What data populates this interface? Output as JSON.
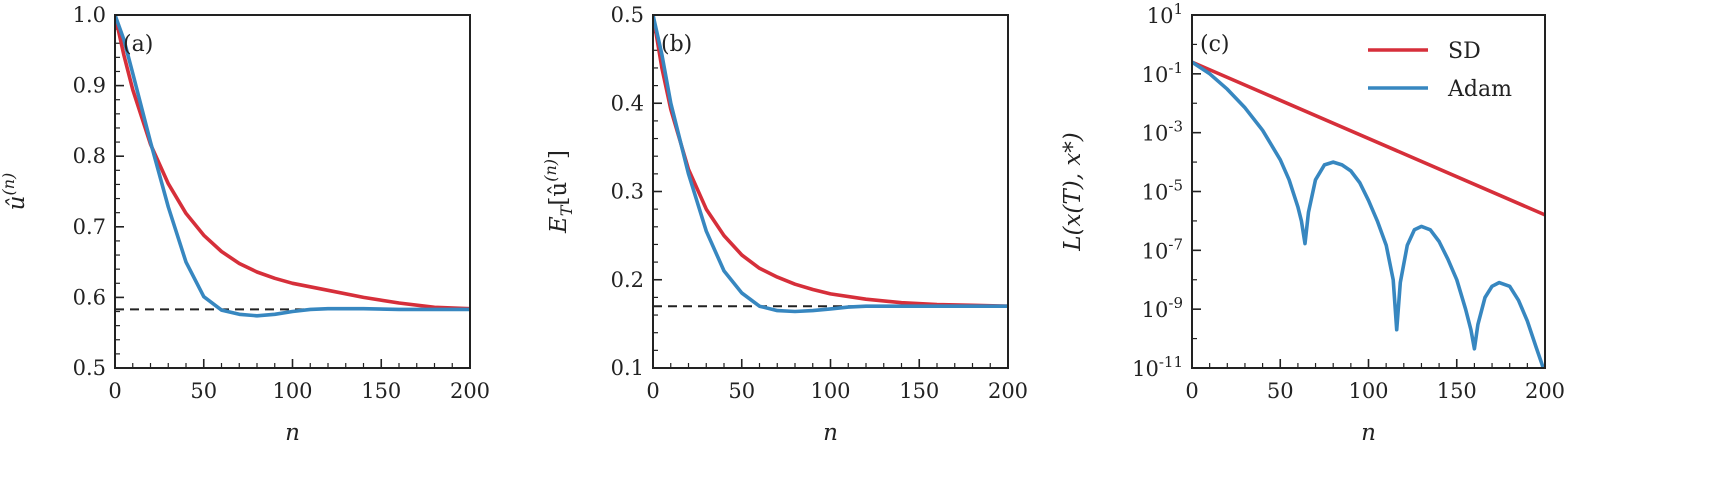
{
  "colors": {
    "sd": "#d62f3a",
    "adam": "#3787c0",
    "reference": "#222222"
  },
  "legend": {
    "placement": "top-right of panel (c)",
    "entries": [
      "SD",
      "Adam"
    ]
  },
  "chart_data": [
    {
      "type": "line",
      "panel_label": "(a)",
      "xlabel": "n",
      "ylabel_parts": [
        "û",
        "(n)"
      ],
      "xlim": [
        0,
        200
      ],
      "ylim": [
        0.5,
        1.0
      ],
      "xticks": [
        0,
        50,
        100,
        150,
        200
      ],
      "xtick_labels": [
        "0",
        "50",
        "100",
        "150",
        "200"
      ],
      "yticks": [
        0.5,
        0.6,
        0.7,
        0.8,
        0.9,
        1.0
      ],
      "ytick_labels": [
        "0.5",
        "0.6",
        "0.7",
        "0.8",
        "0.9",
        "1.0"
      ],
      "yscale": "linear",
      "reference_line": {
        "style": "dashed",
        "y": 0.583
      },
      "series": [
        {
          "name": "SD",
          "color": "#d62f3a",
          "x": [
            0,
            5,
            10,
            20,
            30,
            40,
            50,
            60,
            70,
            80,
            90,
            100,
            120,
            140,
            160,
            180,
            200
          ],
          "y": [
            1.0,
            0.943,
            0.894,
            0.817,
            0.761,
            0.719,
            0.688,
            0.665,
            0.648,
            0.636,
            0.627,
            0.62,
            0.61,
            0.6,
            0.592,
            0.586,
            0.584
          ]
        },
        {
          "name": "Adam",
          "color": "#3787c0",
          "x": [
            0,
            5,
            10,
            20,
            30,
            40,
            50,
            60,
            70,
            80,
            90,
            100,
            110,
            120,
            140,
            160,
            180,
            200
          ],
          "y": [
            1.0,
            0.965,
            0.917,
            0.82,
            0.728,
            0.65,
            0.601,
            0.582,
            0.576,
            0.574,
            0.576,
            0.58,
            0.583,
            0.584,
            0.584,
            0.583,
            0.583,
            0.583
          ]
        }
      ]
    },
    {
      "type": "line",
      "panel_label": "(b)",
      "xlabel": "n",
      "ylabel_parts": [
        "E",
        "T",
        "[û",
        "(n)",
        "]"
      ],
      "xlim": [
        0,
        200
      ],
      "ylim": [
        0.1,
        0.5
      ],
      "xticks": [
        0,
        50,
        100,
        150,
        200
      ],
      "xtick_labels": [
        "0",
        "50",
        "100",
        "150",
        "200"
      ],
      "yticks": [
        0.1,
        0.2,
        0.3,
        0.4,
        0.5
      ],
      "ytick_labels": [
        "0.1",
        "0.2",
        "0.3",
        "0.4",
        "0.5"
      ],
      "yscale": "linear",
      "reference_line": {
        "style": "dashed",
        "y": 0.17
      },
      "series": [
        {
          "name": "SD",
          "color": "#d62f3a",
          "x": [
            0,
            5,
            10,
            20,
            30,
            40,
            50,
            60,
            70,
            80,
            90,
            100,
            120,
            140,
            160,
            180,
            200
          ],
          "y": [
            0.5,
            0.44,
            0.393,
            0.325,
            0.28,
            0.25,
            0.228,
            0.213,
            0.203,
            0.195,
            0.189,
            0.184,
            0.178,
            0.174,
            0.172,
            0.171,
            0.17
          ]
        },
        {
          "name": "Adam",
          "color": "#3787c0",
          "x": [
            0,
            5,
            10,
            20,
            30,
            40,
            50,
            60,
            70,
            80,
            90,
            100,
            110,
            120,
            140,
            160,
            180,
            200
          ],
          "y": [
            0.5,
            0.455,
            0.4,
            0.32,
            0.255,
            0.21,
            0.185,
            0.17,
            0.165,
            0.164,
            0.165,
            0.167,
            0.169,
            0.17,
            0.17,
            0.17,
            0.17,
            0.17
          ]
        }
      ]
    },
    {
      "type": "line",
      "panel_label": "(c)",
      "xlabel": "n",
      "ylabel": "L(x(T), x*)",
      "xlim": [
        0,
        200
      ],
      "ylim": [
        1e-11,
        10
      ],
      "yscale": "log",
      "xticks": [
        0,
        50,
        100,
        150,
        200
      ],
      "xtick_labels": [
        "0",
        "50",
        "100",
        "150",
        "200"
      ],
      "ytick_exponents": [
        1,
        -1,
        -3,
        -5,
        -7,
        -9,
        -11
      ],
      "ytick_base": "10",
      "series": [
        {
          "name": "SD",
          "color": "#d62f3a",
          "x": [
            0,
            200
          ],
          "y": [
            0.25,
            1.6e-06
          ]
        },
        {
          "name": "Adam",
          "color": "#3787c0",
          "x": [
            0,
            10,
            20,
            30,
            40,
            50,
            55,
            60,
            62,
            64,
            66,
            70,
            75,
            80,
            85,
            90,
            95,
            100,
            105,
            110,
            114,
            116,
            118,
            122,
            126,
            130,
            135,
            140,
            145,
            150,
            155,
            158,
            160,
            162,
            166,
            170,
            174,
            180,
            185,
            190,
            195,
            198,
            199
          ],
          "y": [
            0.25,
            0.1,
            0.03,
            0.007,
            0.0012,
            0.00012,
            2.5e-05,
            3e-06,
            1e-06,
            1.7e-07,
            2e-06,
            2.5e-05,
            8e-05,
            0.0001,
            8e-05,
            5e-05,
            2e-05,
            5e-06,
            1e-06,
            1.5e-07,
            1e-08,
            2e-10,
            8e-09,
            1.5e-07,
            5e-07,
            6.5e-07,
            5e-07,
            2e-07,
            5e-08,
            1e-08,
            1e-09,
            2e-10,
            4.5e-11,
            3e-10,
            2.5e-09,
            6e-09,
            8e-09,
            6e-09,
            2e-09,
            4e-10,
            5e-11,
            1.5e-11,
            1e-11
          ]
        }
      ]
    }
  ]
}
